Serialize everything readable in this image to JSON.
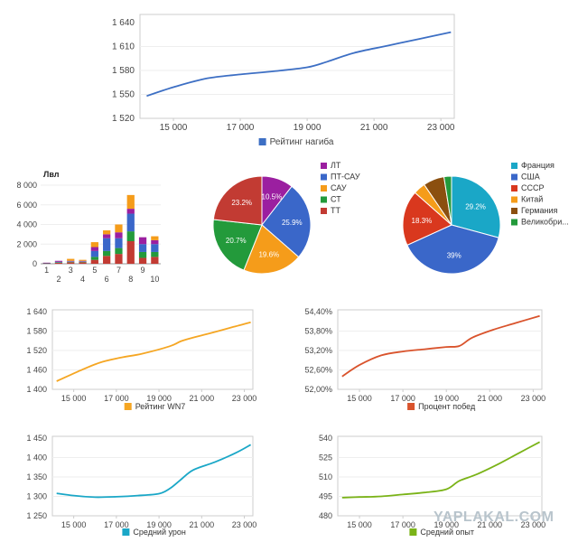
{
  "charts": {
    "rating": {
      "type": "line",
      "legend": "Рейтинг нагиба",
      "color": "#3d6fc4",
      "xticks": [
        "15 000",
        "17 000",
        "19 000",
        "21 000",
        "23 000"
      ],
      "yticks": [
        "1 520",
        "1 550",
        "1 580",
        "1 610",
        "1 640"
      ],
      "xlim": [
        14000,
        23400
      ],
      "ylim": [
        1520,
        1640
      ],
      "x": [
        14200,
        15000,
        16000,
        17000,
        18000,
        19000,
        19600,
        20400,
        21400,
        22400,
        23300
      ],
      "y": [
        1548,
        1559,
        1570,
        1575,
        1579,
        1584,
        1591,
        1602,
        1611,
        1620,
        1628
      ]
    },
    "bars": {
      "type": "bar",
      "title": "Лвл",
      "categories": [
        "1",
        "2",
        "3",
        "4",
        "5",
        "6",
        "7",
        "8",
        "9",
        "10"
      ],
      "cat_labels_top": [
        "1",
        "3",
        "5",
        "7",
        "9"
      ],
      "cat_labels_bottom": [
        "2",
        "4",
        "6",
        "8",
        "10"
      ],
      "yticks": [
        "0",
        "2 000",
        "4 000",
        "6 000",
        "8 000"
      ],
      "ylim": [
        0,
        8000
      ],
      "series_colors": [
        "#c23b33",
        "#239a3b",
        "#3a67c9",
        "#9b1fa0",
        "#f59c1a"
      ],
      "stacks": [
        [
          50,
          20,
          20,
          20,
          0
        ],
        [
          100,
          50,
          50,
          100,
          0
        ],
        [
          150,
          50,
          50,
          50,
          200
        ],
        [
          150,
          50,
          50,
          50,
          100
        ],
        [
          400,
          300,
          600,
          400,
          500
        ],
        [
          800,
          500,
          1300,
          400,
          400
        ],
        [
          1000,
          600,
          1000,
          600,
          800
        ],
        [
          2300,
          1000,
          1800,
          500,
          1400
        ],
        [
          600,
          600,
          800,
          700,
          0
        ],
        [
          700,
          500,
          800,
          400,
          400
        ]
      ]
    },
    "pie1": {
      "type": "pie",
      "legend": [
        "ЛТ",
        "ПТ-САУ",
        "САУ",
        "СТ",
        "ТТ"
      ],
      "values": [
        10.5,
        25.9,
        19.6,
        20.7,
        23.2
      ],
      "labels": [
        "10.5%",
        "25.9%",
        "19.6%",
        "20.7%",
        "23.2%"
      ],
      "colors": [
        "#9b1fa0",
        "#3a67c9",
        "#f59c1a",
        "#239a3b",
        "#c23b33"
      ]
    },
    "pie2": {
      "type": "pie",
      "legend": [
        "Франция",
        "США",
        "СССР",
        "Китай",
        "Германия",
        "Великобри..."
      ],
      "values": [
        29.2,
        39.0,
        18.3,
        4.0,
        7.0,
        2.5
      ],
      "labels": [
        "29.2%",
        "39%",
        "18.3%",
        "",
        "",
        ""
      ],
      "colors": [
        "#1aa7c7",
        "#3a67c9",
        "#d9381e",
        "#f59c1a",
        "#8b4f0f",
        "#239a3b"
      ]
    },
    "wn7": {
      "type": "line",
      "legend": "Рейтинг WN7",
      "color": "#f5a623",
      "xticks": [
        "15 000",
        "17 000",
        "19 000",
        "21 000",
        "23 000"
      ],
      "yticks": [
        "1 400",
        "1 460",
        "1 520",
        "1 580",
        "1 640"
      ],
      "xlim": [
        14000,
        23400
      ],
      "ylim": [
        1400,
        1640
      ],
      "x": [
        14200,
        15200,
        16200,
        17200,
        18200,
        19500,
        20000,
        20500,
        21500,
        22500,
        23300
      ],
      "y": [
        1425,
        1455,
        1482,
        1498,
        1510,
        1533,
        1548,
        1558,
        1575,
        1593,
        1607
      ]
    },
    "winrate": {
      "type": "line",
      "legend": "Процент побед",
      "color": "#d9532c",
      "xticks": [
        "15 000",
        "17 000",
        "19 000",
        "21 000",
        "23 000"
      ],
      "yticks": [
        "52,00%",
        "52,60%",
        "53,20%",
        "53,80%",
        "54,40%"
      ],
      "xlim": [
        14000,
        23400
      ],
      "ylim": [
        52.0,
        54.4
      ],
      "x": [
        14200,
        15000,
        16000,
        17000,
        18000,
        19000,
        19600,
        20200,
        21200,
        22200,
        23300
      ],
      "y": [
        52.4,
        52.75,
        53.05,
        53.17,
        53.24,
        53.31,
        53.34,
        53.6,
        53.85,
        54.05,
        54.27
      ]
    },
    "damage": {
      "type": "line",
      "legend": "Средний урон",
      "color": "#1aa7c7",
      "xticks": [
        "15 000",
        "17 000",
        "19 000",
        "21 000",
        "23 000"
      ],
      "yticks": [
        "1 250",
        "1 300",
        "1 350",
        "1 400",
        "1 450"
      ],
      "xlim": [
        14000,
        23400
      ],
      "ylim": [
        1250,
        1450
      ],
      "x": [
        14200,
        15000,
        16000,
        17000,
        18000,
        19000,
        19500,
        20000,
        20600,
        21600,
        22600,
        23300
      ],
      "y": [
        1308,
        1302,
        1298,
        1299,
        1302,
        1307,
        1320,
        1342,
        1368,
        1388,
        1412,
        1433
      ]
    },
    "exp": {
      "type": "line",
      "legend": "Средний опыт",
      "color": "#7ab317",
      "xticks": [
        "15 000",
        "17 000",
        "19 000",
        "21 000",
        "23 000"
      ],
      "yticks": [
        "480",
        "495",
        "510",
        "525",
        "540"
      ],
      "xlim": [
        14000,
        23400
      ],
      "ylim": [
        480,
        540
      ],
      "x": [
        14200,
        15000,
        16000,
        17000,
        18000,
        19000,
        19600,
        20400,
        21400,
        22400,
        23300
      ],
      "y": [
        494,
        494.5,
        495,
        496.5,
        498,
        500.5,
        507,
        512,
        520,
        529,
        537
      ]
    }
  },
  "watermark": "YAPLAKAL.COM"
}
